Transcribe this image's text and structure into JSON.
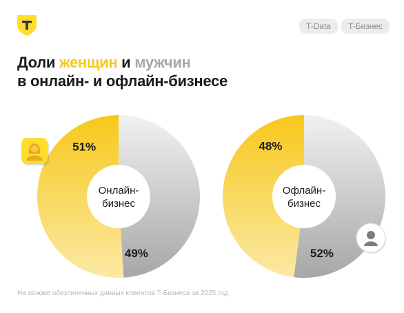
{
  "header": {
    "tags": [
      "T-Data",
      "T-Бизнес"
    ],
    "title_line1": {
      "part1": "Доли ",
      "women": "женщин",
      "part2": " и ",
      "men": "мужчин"
    },
    "title_line2": "в онлайн- и офлайн-бизнесе"
  },
  "colors": {
    "women": "#f7c81c",
    "men": "#a7a7a7",
    "brand": "#ffdd2d"
  },
  "icons": {
    "logo": "t-bank-shield-logo",
    "women": "woman-avatar-icon",
    "men": "man-avatar-icon"
  },
  "chart_data": [
    {
      "type": "pie",
      "center_label": [
        "Онлайн-",
        "бизнес"
      ],
      "slices": [
        {
          "label": "Женщины",
          "value": 51,
          "value_label": "51%",
          "color": "#f7c81c"
        },
        {
          "label": "Мужчины",
          "value": 49,
          "value_label": "49%",
          "color": "#a7a7a7"
        }
      ]
    },
    {
      "type": "pie",
      "center_label": [
        "Офлайн-",
        "бизнес"
      ],
      "slices": [
        {
          "label": "Женщины",
          "value": 48,
          "value_label": "48%",
          "color": "#f7c81c"
        },
        {
          "label": "Мужчины",
          "value": 52,
          "value_label": "52%",
          "color": "#a7a7a7"
        }
      ]
    }
  ],
  "footnote": "На основе обезличенных данных клиентов Т-Бизнеса за 2025 год"
}
